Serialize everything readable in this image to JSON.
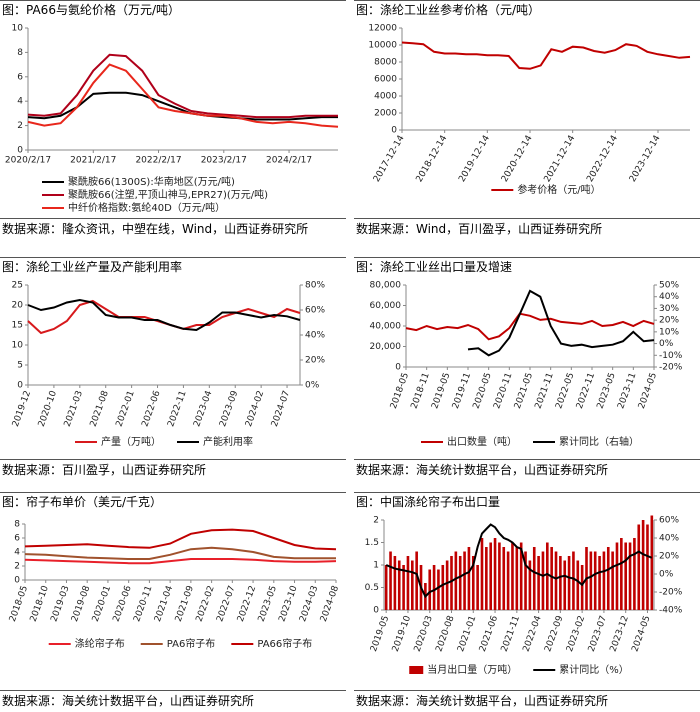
{
  "chart_data": [
    {
      "type": "line",
      "title": "图：PA66与氨纶价格（万元/吨）",
      "source": "数据来源：隆众资讯，中塑在线，Wind，山西证券研究所",
      "categories": [
        "2020/2/17",
        null,
        null,
        null,
        "2021/2/17",
        null,
        null,
        null,
        "2022/2/17",
        null,
        null,
        null,
        "2023/2/17",
        null,
        null,
        null,
        "2024/2/17",
        null,
        null,
        null
      ],
      "series": [
        {
          "name": "聚酰胺66(1300S):华南地区(万元/吨)",
          "color": "#000000",
          "values": [
            2.7,
            2.6,
            2.8,
            3.5,
            4.6,
            4.7,
            4.7,
            4.5,
            4.0,
            3.5,
            3.0,
            2.8,
            2.7,
            2.6,
            2.5,
            2.5,
            2.5,
            2.6,
            2.7,
            2.7
          ]
        },
        {
          "name": "聚酰胺66(注塑,平顶山神马,EPR27)(万元/吨)",
          "color": "#b0001a",
          "values": [
            2.9,
            2.8,
            3.0,
            4.5,
            6.5,
            7.8,
            7.7,
            6.5,
            4.5,
            3.8,
            3.2,
            3.0,
            2.9,
            2.8,
            2.7,
            2.7,
            2.7,
            2.8,
            2.8,
            2.8
          ]
        },
        {
          "name": "中纤价格指数:氨纶40D（万元/吨）",
          "color": "#e8271c",
          "values": [
            2.3,
            2.0,
            2.2,
            3.5,
            5.5,
            7.0,
            6.5,
            5.0,
            3.5,
            3.2,
            3.0,
            2.8,
            2.8,
            2.6,
            2.3,
            2.2,
            2.3,
            2.2,
            2.0,
            1.9
          ]
        }
      ],
      "ylim": [
        0,
        10
      ],
      "yticks": [
        0,
        2,
        4,
        6,
        8,
        10
      ],
      "legend": "bottom"
    },
    {
      "type": "line",
      "title": "图：涤纶工业丝参考价格（元/吨）",
      "source": "数据来源：Wind，百川盈孚，山西证券研究所",
      "categories": [
        "2017-12-14",
        null,
        null,
        null,
        "2018-12-14",
        null,
        null,
        null,
        "2019-12-14",
        null,
        null,
        null,
        "2020-12-14",
        null,
        null,
        null,
        "2021-12-14",
        null,
        null,
        null,
        "2022-12-14",
        null,
        null,
        null,
        "2023-12-14",
        null,
        null,
        null
      ],
      "series": [
        {
          "name": "参考价格（元/吨）",
          "color": "#c00000",
          "values": [
            10300,
            10200,
            10100,
            9200,
            9000,
            9000,
            8900,
            8900,
            8800,
            8800,
            8700,
            7300,
            7200,
            7600,
            9500,
            9200,
            9800,
            9700,
            9300,
            9100,
            9400,
            10100,
            9900,
            9200,
            8900,
            8700,
            8500,
            8600
          ]
        }
      ],
      "ylim": [
        0,
        12000
      ],
      "yticks": [
        0,
        2000,
        4000,
        6000,
        8000,
        10000,
        12000
      ],
      "legend": "bottom"
    },
    {
      "type": "line",
      "title": "图：涤纶工业丝产量及产能利用率",
      "source": "数据来源：百川盈孚，山西证券研究所",
      "categories": [
        "2019-12",
        null,
        "2020-10",
        null,
        "2021-03",
        null,
        "2021-08",
        null,
        "2022-01",
        null,
        "2022-06",
        null,
        "2022-11",
        null,
        "2023-04",
        null,
        "2023-09",
        null,
        "2024-02",
        null,
        "2024-07",
        null
      ],
      "series": [
        {
          "name": "产量（万吨）",
          "color": "#d7191c",
          "values": [
            16,
            13,
            14,
            16,
            20,
            21,
            19,
            17,
            17,
            17,
            16,
            15,
            14,
            15,
            15,
            17,
            18,
            19,
            18,
            17,
            19,
            18
          ]
        },
        {
          "name": "产能利用率",
          "color": "#000000",
          "axis": "y2",
          "values": [
            64,
            60,
            62,
            66,
            68,
            66,
            56,
            54,
            54,
            52,
            52,
            48,
            45,
            44,
            50,
            58,
            58,
            56,
            54,
            56,
            55,
            52
          ]
        }
      ],
      "ylim": [
        0,
        25
      ],
      "yticks": [
        0,
        5,
        10,
        15,
        20,
        25
      ],
      "y2lim": [
        0,
        80
      ],
      "y2ticks": [
        {
          "value": 0,
          "label": "0%"
        },
        {
          "value": 20,
          "label": "20%"
        },
        {
          "value": 40,
          "label": "40%"
        },
        {
          "value": 60,
          "label": "60%"
        },
        {
          "value": 80,
          "label": "80%"
        }
      ],
      "legend": "bottom"
    },
    {
      "type": "line",
      "title": "图：涤纶工业丝出口量及增速",
      "source": "数据来源：海关统计数据平台，山西证券研究所",
      "categories": [
        "2018-05",
        null,
        "2018-11",
        null,
        "2019-05",
        null,
        "2019-11",
        null,
        "2020-05",
        null,
        "2020-11",
        null,
        "2021-05",
        null,
        "2021-11",
        null,
        "2022-05",
        null,
        "2022-11",
        null,
        "2023-05",
        null,
        "2023-11",
        null,
        "2024-05"
      ],
      "series": [
        {
          "name": "出口数量（吨）",
          "color": "#c00000",
          "values": [
            38000,
            36000,
            40000,
            37000,
            39000,
            38000,
            41000,
            37000,
            27000,
            30000,
            38000,
            52000,
            50000,
            46000,
            47000,
            44000,
            43000,
            42000,
            45000,
            40000,
            41000,
            44000,
            40000,
            45000,
            42000
          ]
        },
        {
          "name": "累计同比（右轴）",
          "color": "#000000",
          "axis": "y2",
          "values": [
            null,
            null,
            null,
            null,
            null,
            null,
            -5,
            -4,
            -10,
            -6,
            5,
            25,
            45,
            40,
            15,
            0,
            -2,
            -1,
            -3,
            -2,
            -1,
            2,
            10,
            2,
            3
          ]
        }
      ],
      "ylim": [
        0,
        80000
      ],
      "yticks": [
        0,
        {
          "value": 20000,
          "label": "20,000"
        },
        {
          "value": 40000,
          "label": "40,000"
        },
        {
          "value": 60000,
          "label": "60,000"
        },
        {
          "value": 80000,
          "label": "80,000"
        }
      ],
      "y2lim": [
        -20,
        50
      ],
      "y2ticks": [
        {
          "value": -20,
          "label": "-20%"
        },
        {
          "value": -10,
          "label": "-10%"
        },
        {
          "value": 0,
          "label": "0%"
        },
        {
          "value": 10,
          "label": "10%"
        },
        {
          "value": 20,
          "label": "20%"
        },
        {
          "value": 30,
          "label": "30%"
        },
        {
          "value": 40,
          "label": "40%"
        },
        {
          "value": 50,
          "label": "50%"
        }
      ],
      "legend": "bottom"
    },
    {
      "type": "line",
      "title": "图：帘子布单价（美元/千克）",
      "source": "数据来源：海关统计数据平台，山西证券研究所",
      "categories": [
        "2018-05",
        "2018-10",
        "2019-03",
        "2019-08",
        "2020-01",
        "2020-06",
        "2020-11",
        "2021-04",
        "2021-09",
        "2022-02",
        "2022-07",
        "2022-12",
        "2023-05",
        "2023-10",
        "2024-03",
        "2024-08"
      ],
      "series": [
        {
          "name": "涤纶帘子布",
          "color": "#e8202a",
          "values": [
            2.9,
            2.8,
            2.7,
            2.6,
            2.5,
            2.4,
            2.4,
            2.7,
            3.0,
            3.0,
            3.0,
            2.9,
            2.7,
            2.6,
            2.6,
            2.7
          ]
        },
        {
          "name": "PA6帘子布",
          "color": "#a0522d",
          "values": [
            3.7,
            3.6,
            3.4,
            3.2,
            3.1,
            3.0,
            3.0,
            3.6,
            4.4,
            4.6,
            4.4,
            4.0,
            3.3,
            3.1,
            3.1,
            3.1
          ]
        },
        {
          "name": "PA66帘子布",
          "color": "#c00000",
          "values": [
            4.8,
            4.9,
            5.0,
            5.1,
            4.9,
            4.7,
            4.6,
            5.2,
            6.6,
            7.1,
            7.2,
            7.0,
            6.0,
            5.0,
            4.5,
            4.4
          ]
        }
      ],
      "ylim": [
        0,
        8
      ],
      "yticks": [
        0,
        2,
        4,
        6,
        8
      ],
      "legend": "bottom"
    },
    {
      "type": "combo",
      "title": "图：中国涤纶帘子布出口量",
      "source": "数据来源：海关统计数据平台，山西证券研究所",
      "categories": [
        "2019-05",
        null,
        null,
        null,
        null,
        "2019-10",
        null,
        null,
        null,
        null,
        "2020-03",
        null,
        null,
        null,
        null,
        "2020-08",
        null,
        null,
        null,
        null,
        "2021-01",
        null,
        null,
        null,
        null,
        "2021-06",
        null,
        null,
        null,
        null,
        "2021-11",
        null,
        null,
        null,
        null,
        "2022-04",
        null,
        null,
        null,
        null,
        "2022-09",
        null,
        null,
        null,
        null,
        "2023-02",
        null,
        null,
        null,
        null,
        "2023-07",
        null,
        null,
        null,
        null,
        "2023-12",
        null,
        null,
        null,
        null,
        "2024-05",
        null
      ],
      "series": [
        {
          "name": "当月出口量（万吨）",
          "type": "bar",
          "color": "#c00000",
          "values": [
            1.0,
            1.3,
            1.2,
            1.1,
            1.0,
            1.2,
            1.1,
            1.3,
            1.0,
            0.6,
            0.9,
            1.0,
            0.9,
            1.0,
            1.1,
            1.2,
            1.3,
            1.2,
            1.3,
            1.4,
            1.2,
            1.0,
            1.6,
            1.4,
            1.5,
            1.6,
            1.5,
            1.4,
            1.3,
            1.5,
            1.4,
            1.5,
            1.3,
            1.1,
            1.4,
            1.2,
            1.3,
            1.5,
            1.4,
            1.3,
            1.2,
            1.1,
            1.2,
            1.3,
            1.1,
            1.0,
            1.4,
            1.3,
            1.3,
            1.2,
            1.3,
            1.4,
            1.3,
            1.5,
            1.6,
            1.5,
            1.5,
            1.6,
            1.9,
            2.0,
            1.9,
            2.1
          ]
        },
        {
          "name": "累计同比（%）",
          "type": "line",
          "color": "#000000",
          "axis": "y2",
          "values": [
            10,
            8,
            6,
            5,
            4,
            3,
            2,
            0,
            -15,
            -25,
            -20,
            -18,
            -15,
            -12,
            -10,
            -8,
            -5,
            -3,
            0,
            2,
            10,
            30,
            45,
            50,
            55,
            52,
            45,
            40,
            38,
            35,
            30,
            28,
            10,
            5,
            2,
            0,
            -2,
            0,
            -3,
            -5,
            -3,
            -2,
            -4,
            -5,
            -8,
            -12,
            -5,
            -3,
            0,
            2,
            3,
            5,
            8,
            10,
            12,
            15,
            20,
            22,
            25,
            22,
            20,
            18
          ]
        }
      ],
      "ylim": [
        0,
        2
      ],
      "yticks": [
        0,
        0.5,
        1,
        1.5,
        2
      ],
      "y2lim": [
        -40,
        60
      ],
      "y2ticks": [
        {
          "value": -40,
          "label": "-40%"
        },
        {
          "value": -20,
          "label": "-20%"
        },
        {
          "value": 0,
          "label": "0%"
        },
        {
          "value": 20,
          "label": "20%"
        },
        {
          "value": 40,
          "label": "40%"
        },
        {
          "value": 60,
          "label": "60%"
        }
      ],
      "legend": "bottom"
    }
  ]
}
